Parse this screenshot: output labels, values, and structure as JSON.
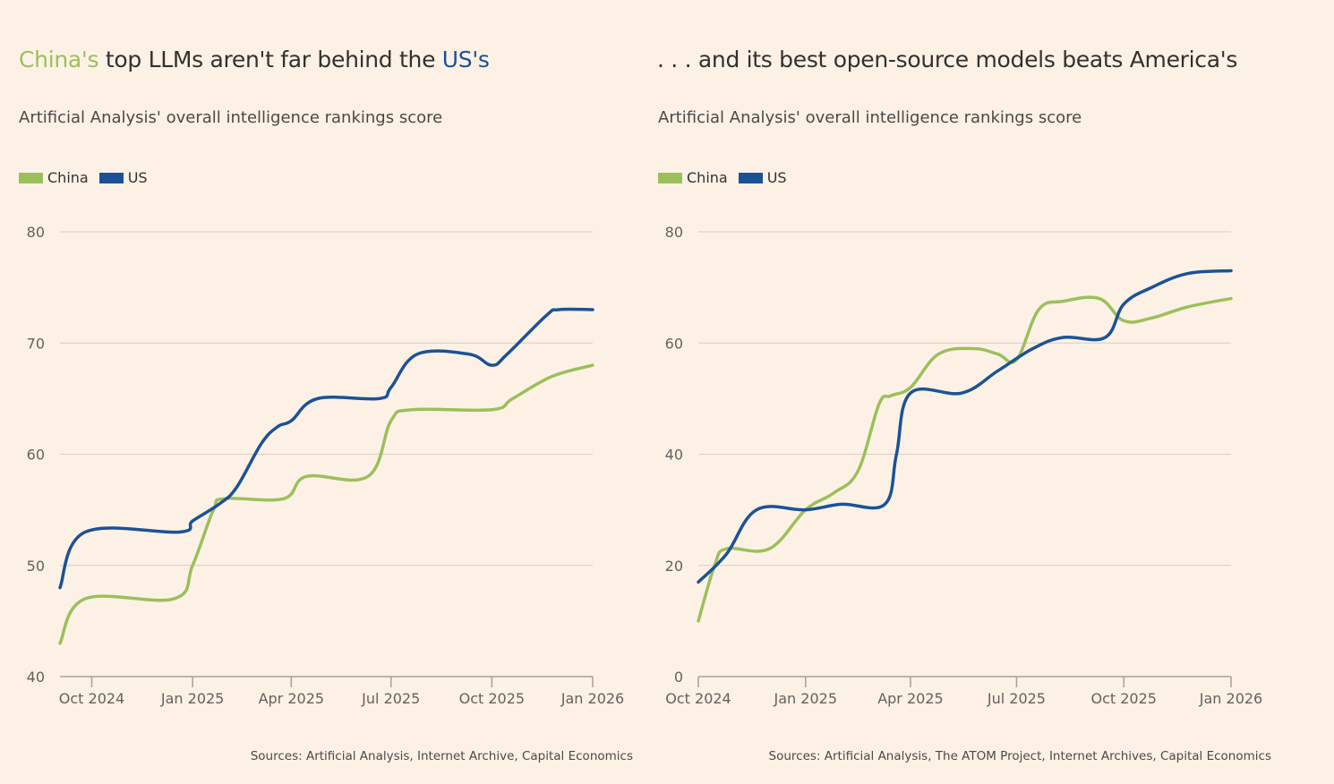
{
  "colors": {
    "China": "#9bc05a",
    "US": "#1b5296",
    "grid": "#d9ccc0",
    "axis": "#a8a09a",
    "background": "#fdf1e6"
  },
  "chart_data": [
    {
      "type": "line",
      "title_parts": [
        {
          "text": "China's",
          "color": "#9bc05a"
        },
        {
          "text": " top LLMs aren't far behind the ",
          "color": "#33302e"
        },
        {
          "text": "US's",
          "color": "#1b5296"
        }
      ],
      "subtitle": "Artificial Analysis' overall intelligence rankings score",
      "legend": [
        "China",
        "US"
      ],
      "legend_placement": "top-left",
      "ylim": [
        40,
        80
      ],
      "yticks": [
        40,
        50,
        60,
        70,
        80
      ],
      "xlim": [
        "2024-09-02",
        "2026-01-01"
      ],
      "xticks": [
        {
          "date": "2024-10-01",
          "label": "Oct 2024"
        },
        {
          "date": "2025-01-01",
          "label": "Jan 2025"
        },
        {
          "date": "2025-04-01",
          "label": "Apr 2025"
        },
        {
          "date": "2025-07-01",
          "label": "Jul 2025"
        },
        {
          "date": "2025-10-01",
          "label": "Oct 2025"
        },
        {
          "date": "2026-01-01",
          "label": "Jan 2026"
        }
      ],
      "grid": true,
      "series": [
        {
          "name": "China",
          "points": [
            [
              "2024-09-02",
              43
            ],
            [
              "2024-09-25",
              47
            ],
            [
              "2024-12-15",
              47
            ],
            [
              "2025-01-01",
              50
            ],
            [
              "2025-01-20",
              55
            ],
            [
              "2025-01-30",
              56
            ],
            [
              "2025-03-25",
              56
            ],
            [
              "2025-04-15",
              58
            ],
            [
              "2025-06-10",
              58
            ],
            [
              "2025-07-01",
              63
            ],
            [
              "2025-07-20",
              64
            ],
            [
              "2025-10-01",
              64
            ],
            [
              "2025-10-20",
              65
            ],
            [
              "2025-11-25",
              67
            ],
            [
              "2026-01-01",
              68
            ]
          ]
        },
        {
          "name": "US",
          "points": [
            [
              "2024-09-02",
              48
            ],
            [
              "2024-09-25",
              53
            ],
            [
              "2024-12-20",
              53
            ],
            [
              "2025-01-01",
              54
            ],
            [
              "2025-01-25",
              55.5
            ],
            [
              "2025-02-10",
              57
            ],
            [
              "2025-03-05",
              61
            ],
            [
              "2025-03-20",
              62.5
            ],
            [
              "2025-04-01",
              63
            ],
            [
              "2025-04-25",
              65
            ],
            [
              "2025-06-20",
              65
            ],
            [
              "2025-07-01",
              66
            ],
            [
              "2025-07-25",
              69
            ],
            [
              "2025-09-10",
              69
            ],
            [
              "2025-10-01",
              68
            ],
            [
              "2025-10-15",
              69
            ],
            [
              "2025-11-20",
              72.5
            ],
            [
              "2025-12-01",
              73
            ],
            [
              "2026-01-01",
              73
            ]
          ]
        }
      ],
      "source": "Sources: Artificial Analysis, Internet Archive, Capital Economics"
    },
    {
      "type": "line",
      "title_parts": [
        {
          "text": ". . . and its best open-source models beats America's",
          "color": "#33302e"
        }
      ],
      "subtitle": "Artificial Analysis' overall intelligence rankings score",
      "legend": [
        "China",
        "US"
      ],
      "legend_placement": "top-left",
      "ylim": [
        0,
        80
      ],
      "yticks": [
        0,
        20,
        40,
        60,
        80
      ],
      "xlim": [
        "2024-10-01",
        "2026-01-01"
      ],
      "xticks": [
        {
          "date": "2024-10-01",
          "label": "Oct 2024"
        },
        {
          "date": "2025-01-01",
          "label": "Jan 2025"
        },
        {
          "date": "2025-04-01",
          "label": "Apr 2025"
        },
        {
          "date": "2025-07-01",
          "label": "Jul 2025"
        },
        {
          "date": "2025-10-01",
          "label": "Oct 2025"
        },
        {
          "date": "2026-01-01",
          "label": "Jan 2026"
        }
      ],
      "grid": true,
      "series": [
        {
          "name": "China",
          "points": [
            [
              "2024-10-01",
              10
            ],
            [
              "2024-10-15",
              20
            ],
            [
              "2024-10-25",
              23
            ],
            [
              "2024-12-01",
              23
            ],
            [
              "2025-01-01",
              30
            ],
            [
              "2025-01-25",
              33
            ],
            [
              "2025-02-15",
              37
            ],
            [
              "2025-03-05",
              49
            ],
            [
              "2025-03-15",
              50.5
            ],
            [
              "2025-04-01",
              52
            ],
            [
              "2025-04-25",
              58
            ],
            [
              "2025-05-25",
              59
            ],
            [
              "2025-06-15",
              58
            ],
            [
              "2025-07-01",
              57
            ],
            [
              "2025-07-20",
              66
            ],
            [
              "2025-08-10",
              67.5
            ],
            [
              "2025-09-10",
              68
            ],
            [
              "2025-10-01",
              64
            ],
            [
              "2025-10-25",
              64.5
            ],
            [
              "2025-11-25",
              66.5
            ],
            [
              "2026-01-01",
              68
            ]
          ]
        },
        {
          "name": "US",
          "points": [
            [
              "2024-10-01",
              17
            ],
            [
              "2024-10-25",
              22
            ],
            [
              "2024-11-20",
              30
            ],
            [
              "2025-01-01",
              30
            ],
            [
              "2025-02-01",
              31
            ],
            [
              "2025-03-10",
              31
            ],
            [
              "2025-03-20",
              40
            ],
            [
              "2025-04-01",
              51
            ],
            [
              "2025-05-15",
              51
            ],
            [
              "2025-06-15",
              55
            ],
            [
              "2025-07-15",
              59
            ],
            [
              "2025-08-10",
              61
            ],
            [
              "2025-09-15",
              61
            ],
            [
              "2025-10-01",
              67
            ],
            [
              "2025-10-25",
              70
            ],
            [
              "2025-11-25",
              72.5
            ],
            [
              "2026-01-01",
              73
            ]
          ]
        }
      ],
      "source": "Sources: Artificial Analysis, The ATOM Project, Internet Archives, Capital Economics"
    }
  ]
}
